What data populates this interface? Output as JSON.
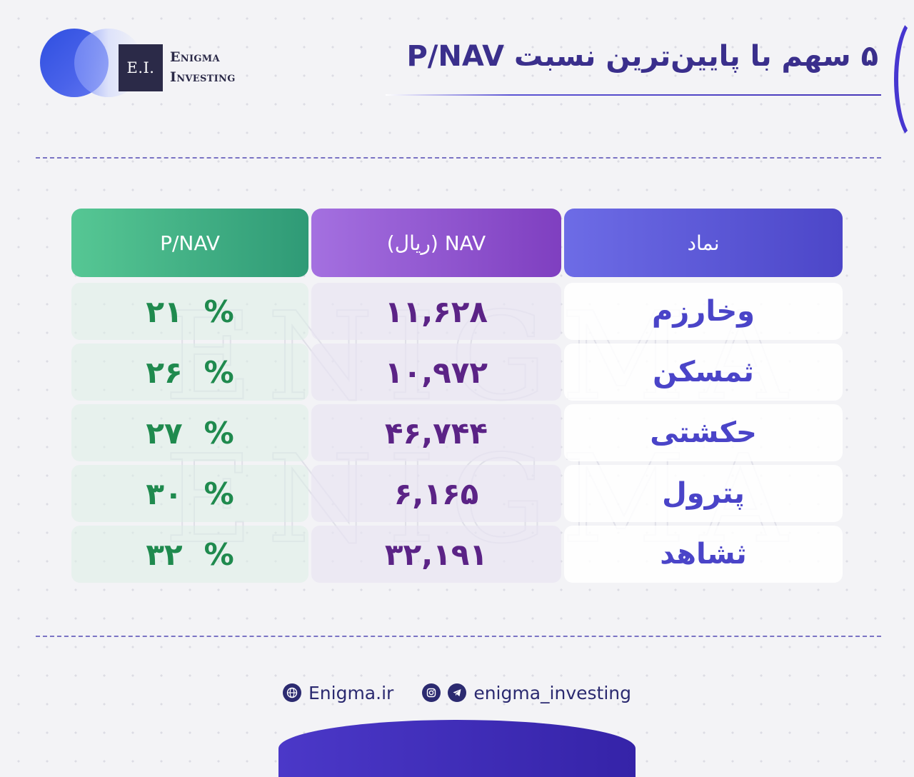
{
  "brand": {
    "logo_initials": "E.I.",
    "logo_line1": "Enigma",
    "logo_line2": "Investing"
  },
  "title": "۵ سهم با پایین‌ترین نسبت P/NAV",
  "table": {
    "headers": {
      "pnav": "P/NAV",
      "nav": "NAV (ریال)",
      "symbol": "نماد"
    },
    "rows": [
      {
        "symbol": "وخارزم",
        "nav": "۱۱,۶۲۸",
        "pnav_value": "۲۱",
        "pnav_pct": "%"
      },
      {
        "symbol": "ثمسکن",
        "nav": "۱۰,۹۷۲",
        "pnav_value": "۲۶",
        "pnav_pct": "%"
      },
      {
        "symbol": "حکشتی",
        "nav": "۴۶,۷۴۴",
        "pnav_value": "۲۷",
        "pnav_pct": "%"
      },
      {
        "symbol": "پترول",
        "nav": "۶,۱۶۵",
        "pnav_value": "۳۰",
        "pnav_pct": "%"
      },
      {
        "symbol": "ثشاهد",
        "nav": "۳۲,۱۹۱",
        "pnav_value": "۳۲",
        "pnav_pct": "%"
      }
    ]
  },
  "watermark": "ENIGMA ENIGMA",
  "footer": {
    "website": "Enigma.ir",
    "social": "enigma_investing",
    "website_icon": "globe-icon",
    "instagram_icon": "instagram-icon",
    "telegram_icon": "telegram-icon"
  },
  "colors": {
    "title": "#3a2f8c",
    "pnav_header": "#2f9a76",
    "nav_header": "#7f3fc0",
    "symbol_header": "#4c46c8",
    "pnav_text": "#1f8a4e",
    "nav_text": "#5b2386",
    "symbol_text": "#4a44c8"
  }
}
